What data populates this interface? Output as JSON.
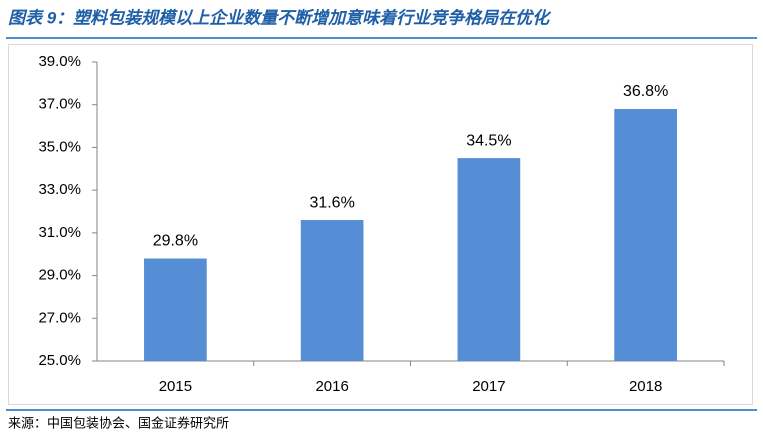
{
  "chart_data": {
    "type": "bar",
    "title": "图表 9：塑料包装规模以上企业数量不断增加意味着行业竞争格局在优化",
    "source": "来源：中国包装协会、国金证券研究所",
    "categories": [
      "2015",
      "2016",
      "2017",
      "2018"
    ],
    "values": [
      29.8,
      31.6,
      34.5,
      36.8
    ],
    "value_labels": [
      "29.8%",
      "31.6%",
      "34.5%",
      "36.8%"
    ],
    "color": "#558ed5",
    "ylim": [
      25,
      39
    ],
    "yticks": [
      {
        "value": 25,
        "label": "25.0%"
      },
      {
        "value": 27,
        "label": "27.0%"
      },
      {
        "value": 29,
        "label": "29.0%"
      },
      {
        "value": 31,
        "label": "31.0%"
      },
      {
        "value": 33,
        "label": "33.0%"
      },
      {
        "value": 35,
        "label": "35.0%"
      },
      {
        "value": 37,
        "label": "37.0%"
      },
      {
        "value": 39,
        "label": "39.0%"
      }
    ],
    "grid": false
  }
}
